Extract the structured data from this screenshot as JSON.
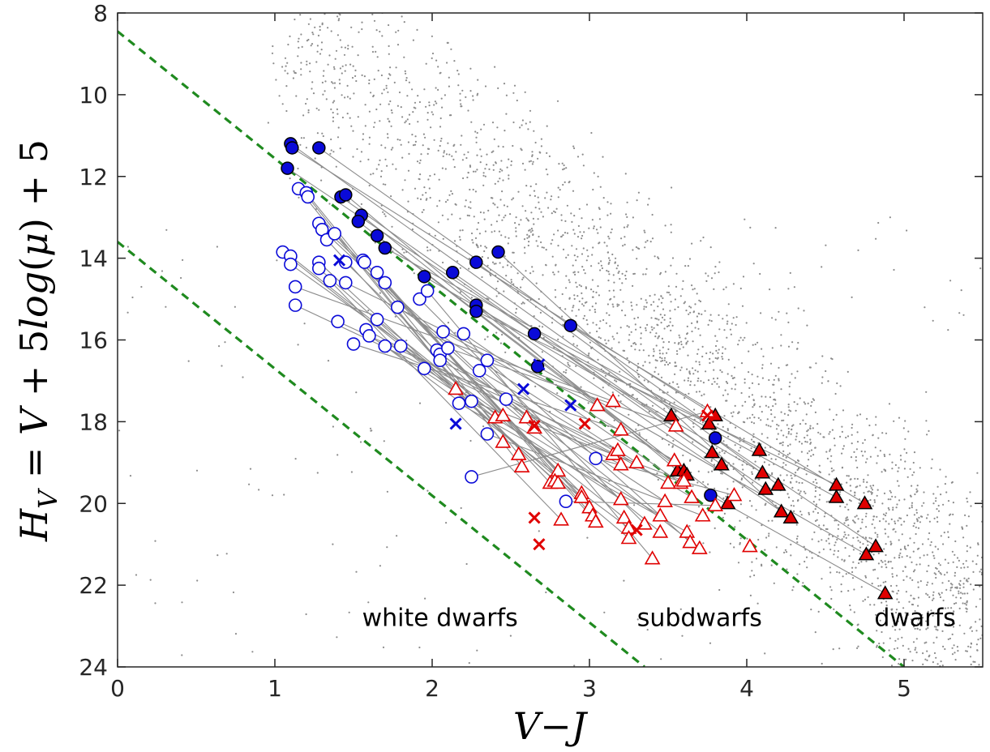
{
  "chart_data": {
    "type": "scatter",
    "title": "",
    "xlabel": "V−J",
    "ylabel": "H_V = V + 5log(μ) + 5",
    "xlim": [
      0,
      5.5
    ],
    "ylim": [
      24,
      8
    ],
    "y_axis_inverted": true,
    "xticks": [
      "0",
      "1",
      "2",
      "3",
      "4",
      "5"
    ],
    "yticks": [
      "8",
      "10",
      "12",
      "14",
      "16",
      "18",
      "20",
      "22",
      "24"
    ],
    "grid": false,
    "legend": "none",
    "region_labels": [
      {
        "text": "white dwarfs",
        "x": 2.05,
        "y": 22.8
      },
      {
        "text": "subdwarfs",
        "x": 3.7,
        "y": 22.8
      },
      {
        "text": "dwarfs",
        "x": 5.07,
        "y": 22.8
      }
    ],
    "divider_lines": [
      {
        "points": [
          [
            0,
            8.45
          ],
          [
            5.0,
            24.0
          ]
        ],
        "color": "#1f8a1f",
        "style": "dashed"
      },
      {
        "points": [
          [
            0,
            13.6
          ],
          [
            3.35,
            24.0
          ]
        ],
        "color": "#1f8a1f",
        "style": "dashed"
      }
    ],
    "series": [
      {
        "marker": "dot",
        "color": "#8c8c8c",
        "count_approx": 3000,
        "description": "background field stars, densest band from (1.0, 9) to (5.5, 21)"
      },
      {
        "marker": "circle-filled",
        "color": "#0a0ad8",
        "points": [
          [
            1.1,
            11.2
          ],
          [
            1.11,
            11.3
          ],
          [
            1.28,
            11.3
          ],
          [
            1.08,
            11.8
          ],
          [
            1.42,
            12.5
          ],
          [
            1.45,
            12.45
          ],
          [
            1.55,
            12.95
          ],
          [
            1.53,
            13.1
          ],
          [
            1.65,
            13.45
          ],
          [
            1.7,
            13.75
          ],
          [
            1.95,
            14.45
          ],
          [
            2.13,
            14.35
          ],
          [
            2.28,
            14.1
          ],
          [
            2.42,
            13.85
          ],
          [
            2.28,
            15.15
          ],
          [
            2.28,
            15.3
          ],
          [
            2.65,
            15.85
          ],
          [
            2.88,
            15.65
          ],
          [
            2.67,
            16.65
          ],
          [
            3.8,
            18.4
          ],
          [
            3.77,
            19.8
          ]
        ]
      },
      {
        "marker": "circle-open",
        "color": "#0a0ad8",
        "points": [
          [
            1.05,
            13.85
          ],
          [
            1.1,
            13.95
          ],
          [
            1.1,
            14.15
          ],
          [
            1.15,
            12.3
          ],
          [
            1.2,
            12.4
          ],
          [
            1.21,
            12.5
          ],
          [
            1.28,
            13.15
          ],
          [
            1.3,
            13.3
          ],
          [
            1.33,
            13.55
          ],
          [
            1.38,
            13.4
          ],
          [
            1.28,
            14.1
          ],
          [
            1.28,
            14.25
          ],
          [
            1.35,
            14.55
          ],
          [
            1.45,
            14.1
          ],
          [
            1.56,
            14.05
          ],
          [
            1.57,
            14.1
          ],
          [
            1.65,
            14.35
          ],
          [
            1.7,
            14.6
          ],
          [
            1.45,
            14.6
          ],
          [
            1.13,
            14.7
          ],
          [
            1.13,
            15.15
          ],
          [
            1.4,
            15.55
          ],
          [
            1.5,
            16.1
          ],
          [
            1.58,
            15.75
          ],
          [
            1.6,
            15.9
          ],
          [
            1.65,
            15.5
          ],
          [
            1.7,
            16.15
          ],
          [
            1.8,
            16.15
          ],
          [
            1.78,
            15.2
          ],
          [
            1.92,
            15.0
          ],
          [
            1.97,
            14.8
          ],
          [
            1.95,
            16.7
          ],
          [
            2.03,
            16.25
          ],
          [
            2.05,
            16.35
          ],
          [
            2.05,
            16.5
          ],
          [
            2.07,
            15.8
          ],
          [
            2.1,
            16.2
          ],
          [
            2.2,
            15.85
          ],
          [
            2.25,
            17.5
          ],
          [
            2.17,
            17.55
          ],
          [
            2.35,
            16.5
          ],
          [
            2.3,
            16.75
          ],
          [
            2.47,
            17.45
          ],
          [
            2.35,
            18.3
          ],
          [
            2.25,
            19.35
          ],
          [
            2.85,
            19.95
          ],
          [
            3.04,
            18.9
          ]
        ]
      },
      {
        "marker": "triangle-filled",
        "color": "#e00000",
        "points": [
          [
            3.52,
            17.85
          ],
          [
            3.8,
            17.85
          ],
          [
            3.76,
            18.05
          ],
          [
            3.78,
            18.75
          ],
          [
            3.84,
            19.05
          ],
          [
            3.56,
            19.2
          ],
          [
            3.6,
            19.2
          ],
          [
            3.62,
            19.3
          ],
          [
            3.88,
            20.0
          ],
          [
            4.08,
            18.7
          ],
          [
            4.1,
            19.25
          ],
          [
            4.12,
            19.65
          ],
          [
            4.2,
            19.55
          ],
          [
            4.22,
            20.2
          ],
          [
            4.28,
            20.35
          ],
          [
            4.57,
            19.55
          ],
          [
            4.57,
            19.85
          ],
          [
            4.75,
            20.0
          ],
          [
            4.76,
            21.25
          ],
          [
            4.82,
            21.05
          ],
          [
            4.88,
            22.2
          ]
        ]
      },
      {
        "marker": "triangle-open",
        "color": "#e00000",
        "points": [
          [
            2.15,
            17.2
          ],
          [
            2.4,
            17.9
          ],
          [
            2.45,
            17.85
          ],
          [
            2.45,
            18.5
          ],
          [
            2.55,
            18.8
          ],
          [
            2.57,
            19.1
          ],
          [
            2.6,
            17.9
          ],
          [
            2.65,
            18.15
          ],
          [
            2.75,
            19.5
          ],
          [
            2.8,
            19.2
          ],
          [
            2.78,
            19.45
          ],
          [
            2.8,
            19.5
          ],
          [
            2.82,
            20.4
          ],
          [
            2.95,
            19.75
          ],
          [
            2.95,
            19.85
          ],
          [
            3.0,
            20.1
          ],
          [
            3.02,
            20.3
          ],
          [
            3.04,
            20.45
          ],
          [
            3.05,
            17.6
          ],
          [
            3.15,
            17.5
          ],
          [
            3.15,
            18.8
          ],
          [
            3.18,
            18.7
          ],
          [
            3.2,
            18.2
          ],
          [
            3.2,
            19.05
          ],
          [
            3.2,
            19.9
          ],
          [
            3.22,
            20.35
          ],
          [
            3.25,
            20.6
          ],
          [
            3.25,
            20.85
          ],
          [
            3.3,
            19.0
          ],
          [
            3.35,
            20.5
          ],
          [
            3.4,
            21.35
          ],
          [
            3.45,
            20.3
          ],
          [
            3.45,
            20.7
          ],
          [
            3.48,
            19.95
          ],
          [
            3.5,
            19.5
          ],
          [
            3.54,
            18.95
          ],
          [
            3.55,
            18.1
          ],
          [
            3.58,
            19.5
          ],
          [
            3.6,
            19.45
          ],
          [
            3.62,
            20.7
          ],
          [
            3.64,
            20.95
          ],
          [
            3.65,
            19.85
          ],
          [
            3.7,
            21.1
          ],
          [
            3.72,
            20.3
          ],
          [
            3.75,
            17.75
          ],
          [
            3.8,
            20.05
          ],
          [
            3.92,
            19.8
          ],
          [
            4.02,
            21.05
          ]
        ]
      },
      {
        "marker": "x",
        "color": "#0a0ad8",
        "points": [
          [
            1.41,
            14.05
          ],
          [
            2.15,
            18.05
          ],
          [
            2.58,
            17.2
          ],
          [
            2.68,
            16.6
          ],
          [
            2.88,
            17.6
          ]
        ]
      },
      {
        "marker": "x",
        "color": "#e00000",
        "points": [
          [
            2.65,
            18.1
          ],
          [
            2.65,
            20.35
          ],
          [
            2.68,
            21.0
          ],
          [
            2.97,
            18.05
          ],
          [
            3.3,
            20.65
          ],
          [
            3.75,
            17.85
          ]
        ]
      }
    ]
  }
}
